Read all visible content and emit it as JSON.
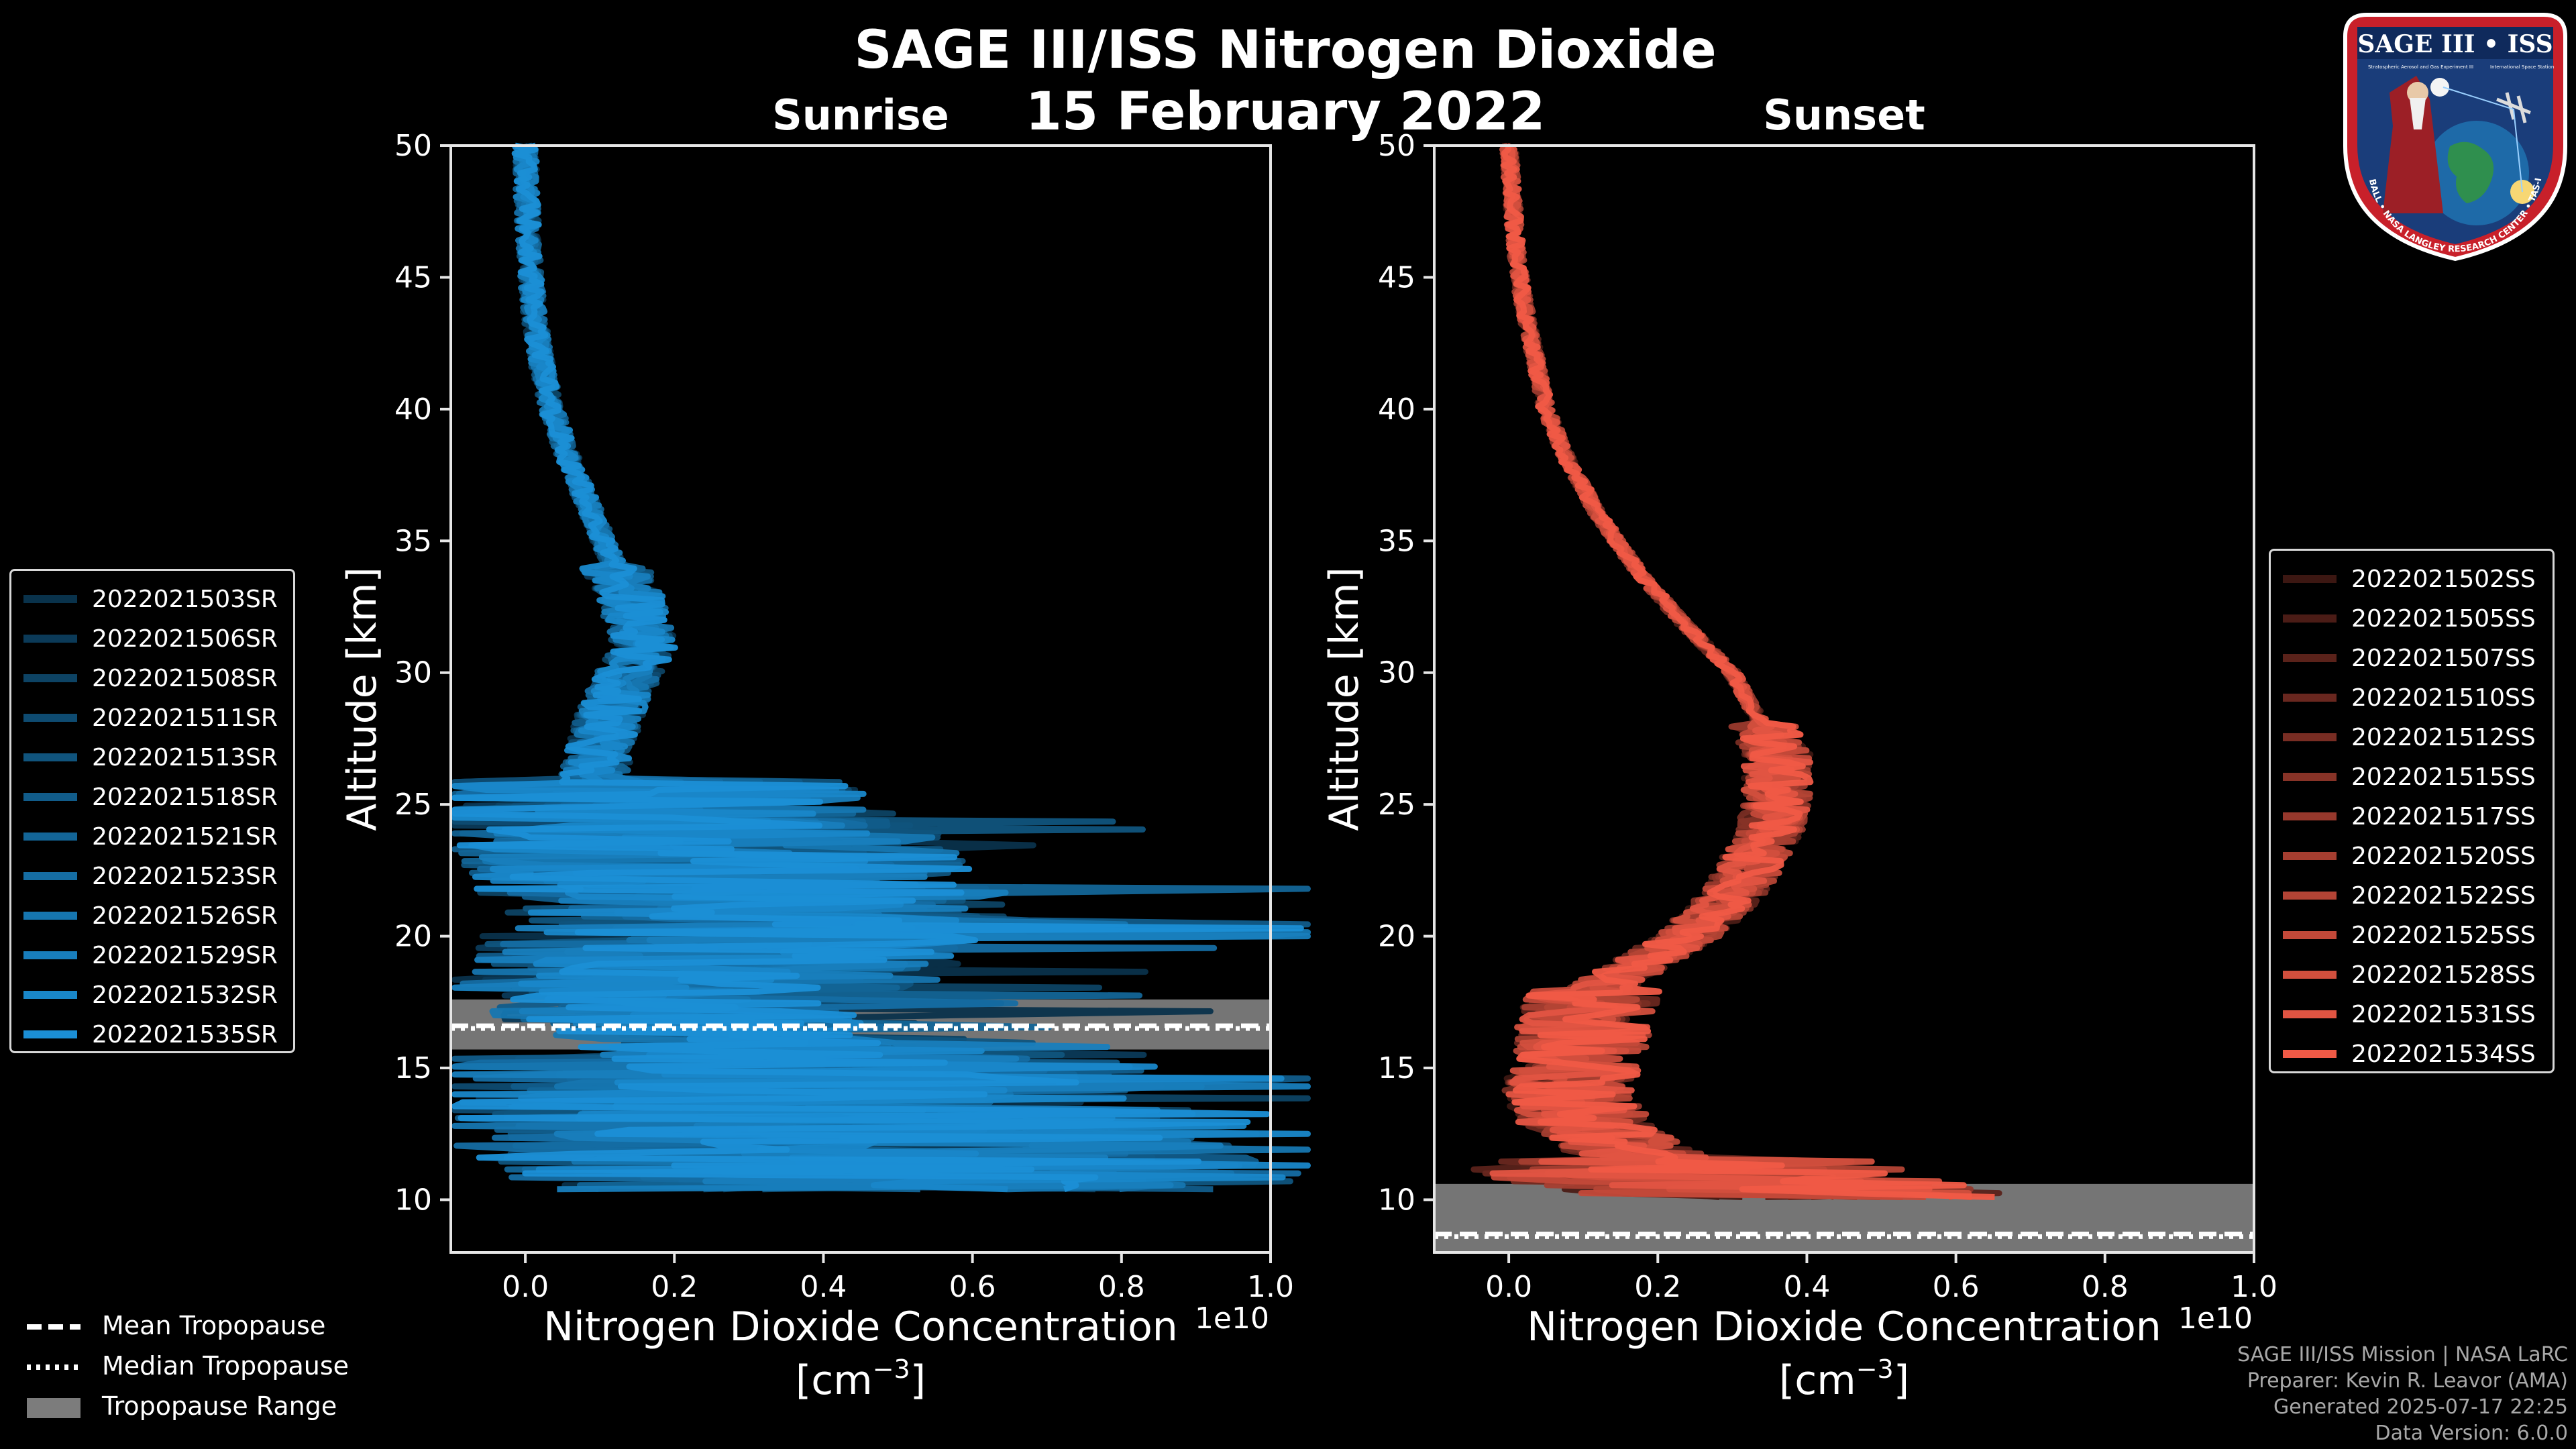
{
  "header": {
    "title": "SAGE III/ISS Nitrogen Dioxide",
    "date": "15 February 2022"
  },
  "panels": {
    "sunrise": {
      "title": "Sunrise",
      "color": "#1b8fd6"
    },
    "sunset": {
      "title": "Sunset",
      "color": "#f05a46"
    }
  },
  "axes": {
    "xlabel_line1": "Nitrogen Dioxide Concentration",
    "xlabel_line2": "[cm",
    "xlabel_exp": "−3",
    "xlabel_close": "]",
    "ylabel": "Altitude [km]",
    "offset_text": "1e10",
    "xlim": [
      -0.1,
      1.0
    ],
    "ylim": [
      8,
      50
    ],
    "xticks": [
      "0.0",
      "0.2",
      "0.4",
      "0.6",
      "0.8",
      "1.0"
    ],
    "yticks": [
      "10",
      "15",
      "20",
      "25",
      "30",
      "35",
      "40",
      "45",
      "50"
    ]
  },
  "legend_sunrise": [
    "2022021503SR",
    "2022021506SR",
    "2022021508SR",
    "2022021511SR",
    "2022021513SR",
    "2022021518SR",
    "2022021521SR",
    "2022021523SR",
    "2022021526SR",
    "2022021529SR",
    "2022021532SR",
    "2022021535SR"
  ],
  "legend_sunset": [
    "2022021502SS",
    "2022021505SS",
    "2022021507SS",
    "2022021510SS",
    "2022021512SS",
    "2022021515SS",
    "2022021517SS",
    "2022021520SS",
    "2022021522SS",
    "2022021525SS",
    "2022021528SS",
    "2022021531SS",
    "2022021534SS"
  ],
  "legend_tropopause": {
    "mean": "Mean Tropopause",
    "median": "Median Tropopause",
    "range": "Tropopause Range"
  },
  "badge": {
    "name": "SAGE III • ISS",
    "subtitle_left": "Stratospheric Aerosol and Gas Experiment III",
    "subtitle_right": "International Space Station",
    "ring_text": "BALL • NASA LANGLEY RESEARCH CENTER • TAS-I • ESA"
  },
  "credits": {
    "line1": "SAGE III/ISS Mission | NASA LaRC",
    "line2": "Preparer: Kevin R. Leavor (AMA)",
    "line3": "Generated 2025-07-17 22:25",
    "line4": "Data Version: 6.0.0"
  },
  "chart_data": [
    {
      "type": "line",
      "title": "Sunrise",
      "xlabel": "Nitrogen Dioxide Concentration [cm^-3]",
      "ylabel": "Altitude [km]",
      "x_scale_factor": "1e10",
      "xlim": [
        -0.1,
        1.0
      ],
      "ylim": [
        8,
        50
      ],
      "grid": false,
      "legend_position": "left",
      "series_names": [
        "2022021503SR",
        "2022021506SR",
        "2022021508SR",
        "2022021511SR",
        "2022021513SR",
        "2022021518SR",
        "2022021521SR",
        "2022021523SR",
        "2022021526SR",
        "2022021529SR",
        "2022021532SR",
        "2022021535SR"
      ],
      "mean_profile": {
        "altitude_km": [
          50,
          48,
          46,
          44,
          42,
          40,
          38,
          36,
          34,
          33,
          32,
          31,
          30,
          29,
          28,
          27,
          26,
          25,
          24,
          23,
          22,
          21,
          20,
          19,
          18,
          17,
          16,
          15,
          14,
          13,
          12,
          11,
          10.3
        ],
        "no2": [
          0.0,
          0.002,
          0.005,
          0.01,
          0.02,
          0.035,
          0.06,
          0.09,
          0.12,
          0.14,
          0.15,
          0.16,
          0.14,
          0.12,
          0.11,
          0.1,
          0.09,
          0.12,
          0.2,
          0.25,
          0.28,
          0.3,
          0.28,
          0.25,
          0.22,
          0.2,
          0.3,
          0.35,
          0.4,
          0.42,
          0.45,
          0.5,
          0.55
        ]
      },
      "tropopause": {
        "mean_km": 16.6,
        "median_km": 16.5,
        "range_km": [
          15.7,
          17.6
        ]
      }
    },
    {
      "type": "line",
      "title": "Sunset",
      "xlabel": "Nitrogen Dioxide Concentration [cm^-3]",
      "ylabel": "Altitude [km]",
      "x_scale_factor": "1e10",
      "xlim": [
        -0.1,
        1.0
      ],
      "ylim": [
        8,
        50
      ],
      "grid": false,
      "legend_position": "right",
      "series_names": [
        "2022021502SS",
        "2022021505SS",
        "2022021507SS",
        "2022021510SS",
        "2022021512SS",
        "2022021515SS",
        "2022021517SS",
        "2022021520SS",
        "2022021522SS",
        "2022021525SS",
        "2022021528SS",
        "2022021531SS",
        "2022021534SS"
      ],
      "mean_profile": {
        "altitude_km": [
          50,
          48,
          46,
          44,
          42,
          40,
          38,
          36,
          34,
          32,
          30,
          28,
          27,
          26,
          25,
          24,
          23,
          22,
          21,
          20,
          19,
          18,
          17,
          16,
          15,
          14,
          13,
          12,
          11,
          10
        ],
        "no2": [
          0.0,
          0.005,
          0.01,
          0.02,
          0.035,
          0.05,
          0.08,
          0.12,
          0.17,
          0.23,
          0.3,
          0.34,
          0.36,
          0.36,
          0.36,
          0.35,
          0.33,
          0.31,
          0.28,
          0.24,
          0.18,
          0.12,
          0.1,
          0.1,
          0.09,
          0.08,
          0.1,
          0.15,
          0.25,
          0.4
        ]
      },
      "tropopause": {
        "mean_km": 8.7,
        "median_km": 8.6,
        "range_km": [
          8.0,
          10.6
        ]
      }
    }
  ]
}
